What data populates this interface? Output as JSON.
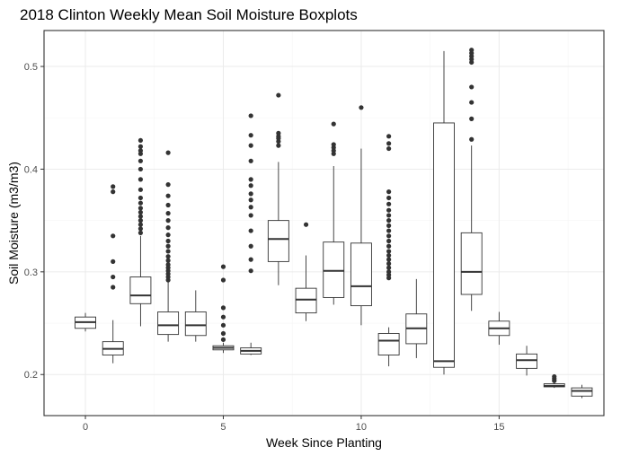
{
  "chart_data": {
    "type": "boxplot",
    "title": "2018 Clinton Weekly Mean Soil Moisture Boxplots",
    "xlabel": "Week Since Planting",
    "ylabel": "Soil Moisture (m3/m3)",
    "xlim": [
      -1.5,
      18.8
    ],
    "ylim": [
      0.16,
      0.535
    ],
    "xticks": [
      0,
      5,
      10,
      15
    ],
    "xtick_labels": [
      "0",
      "5",
      "10",
      "15"
    ],
    "yticks": [
      0.2,
      0.3,
      0.4,
      0.5
    ],
    "ytick_labels": [
      "0.2",
      "0.3",
      "0.4",
      "0.5"
    ],
    "grid": true,
    "boxes": [
      {
        "week": 0,
        "lower_whisker": 0.242,
        "q1": 0.245,
        "median": 0.251,
        "q3": 0.256,
        "upper_whisker": 0.26,
        "outliers": []
      },
      {
        "week": 1,
        "lower_whisker": 0.211,
        "q1": 0.219,
        "median": 0.225,
        "q3": 0.232,
        "upper_whisker": 0.253,
        "outliers": [
          0.285,
          0.295,
          0.31,
          0.335,
          0.378,
          0.383
        ]
      },
      {
        "week": 2,
        "lower_whisker": 0.247,
        "q1": 0.269,
        "median": 0.277,
        "q3": 0.295,
        "upper_whisker": 0.335,
        "outliers": [
          0.338,
          0.342,
          0.346,
          0.35,
          0.354,
          0.358,
          0.362,
          0.367,
          0.372,
          0.38,
          0.39,
          0.4,
          0.408,
          0.415,
          0.418,
          0.422,
          0.428
        ]
      },
      {
        "week": 3,
        "lower_whisker": 0.232,
        "q1": 0.239,
        "median": 0.248,
        "q3": 0.261,
        "upper_whisker": 0.29,
        "outliers": [
          0.292,
          0.295,
          0.298,
          0.301,
          0.304,
          0.307,
          0.311,
          0.315,
          0.32,
          0.325,
          0.33,
          0.336,
          0.343,
          0.35,
          0.357,
          0.365,
          0.374,
          0.385,
          0.416
        ]
      },
      {
        "week": 4,
        "lower_whisker": 0.232,
        "q1": 0.238,
        "median": 0.248,
        "q3": 0.261,
        "upper_whisker": 0.282,
        "outliers": []
      },
      {
        "week": 5,
        "lower_whisker": 0.221,
        "q1": 0.224,
        "median": 0.226,
        "q3": 0.228,
        "upper_whisker": 0.231,
        "outliers": [
          0.234,
          0.24,
          0.248,
          0.256,
          0.265,
          0.292,
          0.305
        ]
      },
      {
        "week": 6,
        "lower_whisker": 0.219,
        "q1": 0.22,
        "median": 0.223,
        "q3": 0.226,
        "upper_whisker": 0.231,
        "outliers": [
          0.301,
          0.312,
          0.325,
          0.34,
          0.355,
          0.363,
          0.37,
          0.376,
          0.384,
          0.39,
          0.408,
          0.423,
          0.433,
          0.452
        ]
      },
      {
        "week": 7,
        "lower_whisker": 0.287,
        "q1": 0.31,
        "median": 0.332,
        "q3": 0.35,
        "upper_whisker": 0.407,
        "outliers": [
          0.423,
          0.427,
          0.43,
          0.432,
          0.435,
          0.472
        ]
      },
      {
        "week": 8,
        "lower_whisker": 0.252,
        "q1": 0.26,
        "median": 0.273,
        "q3": 0.284,
        "upper_whisker": 0.316,
        "outliers": [
          0.346
        ]
      },
      {
        "week": 9,
        "lower_whisker": 0.268,
        "q1": 0.275,
        "median": 0.301,
        "q3": 0.329,
        "upper_whisker": 0.403,
        "outliers": [
          0.415,
          0.418,
          0.421,
          0.424,
          0.444
        ]
      },
      {
        "week": 10,
        "lower_whisker": 0.248,
        "q1": 0.267,
        "median": 0.286,
        "q3": 0.328,
        "upper_whisker": 0.42,
        "outliers": [
          0.46
        ]
      },
      {
        "week": 11,
        "lower_whisker": 0.208,
        "q1": 0.219,
        "median": 0.233,
        "q3": 0.24,
        "upper_whisker": 0.246,
        "outliers": [
          0.294,
          0.297,
          0.3,
          0.304,
          0.308,
          0.312,
          0.316,
          0.32,
          0.325,
          0.33,
          0.335,
          0.34,
          0.345,
          0.35,
          0.355,
          0.36,
          0.366,
          0.372,
          0.378,
          0.42,
          0.425,
          0.432
        ]
      },
      {
        "week": 12,
        "lower_whisker": 0.216,
        "q1": 0.23,
        "median": 0.245,
        "q3": 0.259,
        "upper_whisker": 0.293,
        "outliers": []
      },
      {
        "week": 13,
        "lower_whisker": 0.2,
        "q1": 0.207,
        "median": 0.213,
        "q3": 0.445,
        "upper_whisker": 0.515,
        "outliers": []
      },
      {
        "week": 14,
        "lower_whisker": 0.262,
        "q1": 0.278,
        "median": 0.3,
        "q3": 0.338,
        "upper_whisker": 0.423,
        "outliers": [
          0.429,
          0.449,
          0.465,
          0.48,
          0.504,
          0.507,
          0.51,
          0.513,
          0.516
        ]
      },
      {
        "week": 15,
        "lower_whisker": 0.229,
        "q1": 0.238,
        "median": 0.245,
        "q3": 0.252,
        "upper_whisker": 0.261,
        "outliers": []
      },
      {
        "week": 16,
        "lower_whisker": 0.199,
        "q1": 0.206,
        "median": 0.214,
        "q3": 0.22,
        "upper_whisker": 0.228,
        "outliers": []
      },
      {
        "week": 17,
        "lower_whisker": 0.187,
        "q1": 0.188,
        "median": 0.189,
        "q3": 0.191,
        "upper_whisker": 0.193,
        "outliers": [
          0.194,
          0.196,
          0.198
        ]
      },
      {
        "week": 18,
        "lower_whisker": 0.177,
        "q1": 0.179,
        "median": 0.184,
        "q3": 0.187,
        "upper_whisker": 0.19,
        "outliers": []
      }
    ]
  }
}
